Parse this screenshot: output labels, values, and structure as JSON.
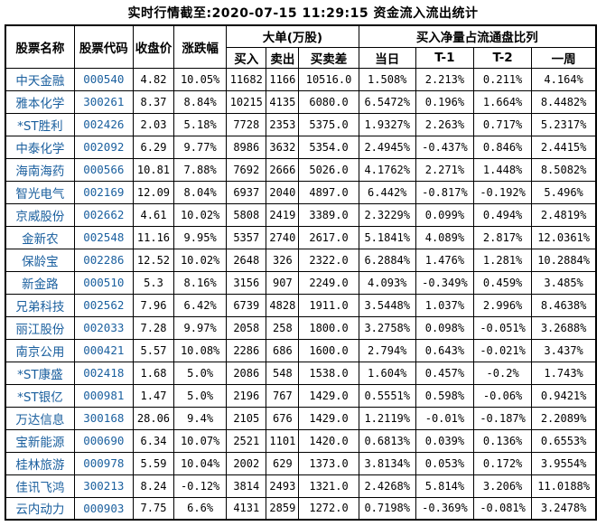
{
  "title": "实时行情截至:2020-07-15 11:29:15 资金流入流出统计",
  "colors": {
    "stock_link_blue": "#1a5f9e",
    "border_black": "#000000",
    "background_white": "#ffffff"
  },
  "table": {
    "fixed_columns": [
      "股票名称",
      "股票代码",
      "收盘价",
      "涨跌幅"
    ],
    "groups": [
      {
        "label": "大单(万股)",
        "span": 3
      },
      {
        "label": "买入净量占流通盘比列",
        "span": 4
      }
    ],
    "sub_columns": [
      "买入",
      "卖出",
      "买卖差",
      "当日",
      "T-1",
      "T-2",
      "一周"
    ],
    "rows": [
      [
        "中天金融",
        "000540",
        "4.82",
        "10.05%",
        "11682",
        "1166",
        "10516.0",
        "1.508%",
        "2.213%",
        "0.211%",
        "4.164%"
      ],
      [
        "雅本化学",
        "300261",
        "8.37",
        "8.84%",
        "10215",
        "4135",
        "6080.0",
        "6.5472%",
        "0.196%",
        "1.664%",
        "8.4482%"
      ],
      [
        "*ST胜利",
        "002426",
        "2.03",
        "5.18%",
        "7728",
        "2353",
        "5375.0",
        "1.9327%",
        "2.263%",
        "0.717%",
        "5.2317%"
      ],
      [
        "中泰化学",
        "002092",
        "6.29",
        "9.77%",
        "8986",
        "3632",
        "5354.0",
        "2.4945%",
        "-0.437%",
        "0.846%",
        "2.4415%"
      ],
      [
        "海南海药",
        "000566",
        "10.81",
        "7.88%",
        "7692",
        "2666",
        "5026.0",
        "4.1762%",
        "2.271%",
        "1.448%",
        "8.5082%"
      ],
      [
        "智光电气",
        "002169",
        "12.09",
        "8.04%",
        "6937",
        "2040",
        "4897.0",
        "6.442%",
        "-0.817%",
        "-0.192%",
        "5.496%"
      ],
      [
        "京威股份",
        "002662",
        "4.61",
        "10.02%",
        "5808",
        "2419",
        "3389.0",
        "2.3229%",
        "0.099%",
        "0.494%",
        "2.4819%"
      ],
      [
        "金新农",
        "002548",
        "11.16",
        "9.95%",
        "5357",
        "2740",
        "2617.0",
        "5.1841%",
        "4.089%",
        "2.817%",
        "12.0361%"
      ],
      [
        "保龄宝",
        "002286",
        "12.52",
        "10.02%",
        "2648",
        "326",
        "2322.0",
        "6.2884%",
        "1.476%",
        "1.281%",
        "10.2884%"
      ],
      [
        "新金路",
        "000510",
        "5.3",
        "8.16%",
        "3156",
        "907",
        "2249.0",
        "4.093%",
        "-0.349%",
        "0.459%",
        "3.485%"
      ],
      [
        "兄弟科技",
        "002562",
        "7.96",
        "6.42%",
        "6739",
        "4828",
        "1911.0",
        "3.5448%",
        "1.037%",
        "2.996%",
        "8.4638%"
      ],
      [
        "丽江股份",
        "002033",
        "7.28",
        "9.97%",
        "2058",
        "258",
        "1800.0",
        "3.2758%",
        "0.098%",
        "-0.051%",
        "3.2688%"
      ],
      [
        "南京公用",
        "000421",
        "5.57",
        "10.08%",
        "2286",
        "686",
        "1600.0",
        "2.794%",
        "0.643%",
        "-0.021%",
        "3.437%"
      ],
      [
        "*ST康盛",
        "002418",
        "1.68",
        "5.0%",
        "2086",
        "548",
        "1538.0",
        "1.604%",
        "0.457%",
        "-0.2%",
        "1.743%"
      ],
      [
        "*ST银亿",
        "000981",
        "1.47",
        "5.0%",
        "2196",
        "767",
        "1429.0",
        "0.5551%",
        "0.598%",
        "-0.06%",
        "0.9421%"
      ],
      [
        "万达信息",
        "300168",
        "28.06",
        "9.4%",
        "2105",
        "676",
        "1429.0",
        "1.2119%",
        "-0.01%",
        "-0.187%",
        "2.2089%"
      ],
      [
        "宝新能源",
        "000690",
        "6.34",
        "10.07%",
        "2521",
        "1101",
        "1420.0",
        "0.6813%",
        "0.039%",
        "0.136%",
        "0.6553%"
      ],
      [
        "桂林旅游",
        "000978",
        "5.59",
        "10.04%",
        "2002",
        "629",
        "1373.0",
        "3.8134%",
        "0.053%",
        "0.172%",
        "3.9554%"
      ],
      [
        "佳讯飞鸿",
        "300213",
        "8.24",
        "-0.12%",
        "3814",
        "2493",
        "1321.0",
        "2.4268%",
        "5.814%",
        "3.206%",
        "11.0188%"
      ],
      [
        "云内动力",
        "000903",
        "7.75",
        "6.6%",
        "4131",
        "2859",
        "1272.0",
        "0.7198%",
        "-0.369%",
        "-0.081%",
        "3.2478%"
      ]
    ]
  }
}
